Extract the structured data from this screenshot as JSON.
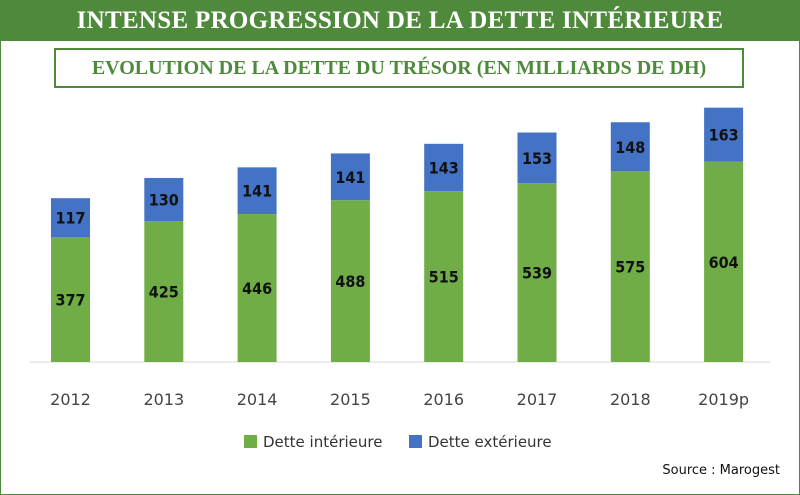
{
  "title": "INTENSE PROGRESSION DE LA DETTE INTÉRIEURE",
  "subtitle": "EVOLUTION DE LA DETTE DU TRÉSOR (EN MILLIARDS DE DH)",
  "source": "Source : Marogest",
  "chart_data": {
    "type": "bar",
    "stacked": true,
    "categories": [
      "2012",
      "2013",
      "2014",
      "2015",
      "2016",
      "2017",
      "2018",
      "2019p"
    ],
    "series": [
      {
        "name": "Dette intérieure",
        "values": [
          377,
          425,
          446,
          488,
          515,
          539,
          575,
          604
        ],
        "color": "#70ad47"
      },
      {
        "name": "Dette extérieure",
        "values": [
          117,
          130,
          141,
          141,
          143,
          153,
          148,
          163
        ],
        "color": "#4472c4"
      }
    ],
    "grid": false,
    "legend_position": "bottom",
    "label_color": "#111111"
  }
}
